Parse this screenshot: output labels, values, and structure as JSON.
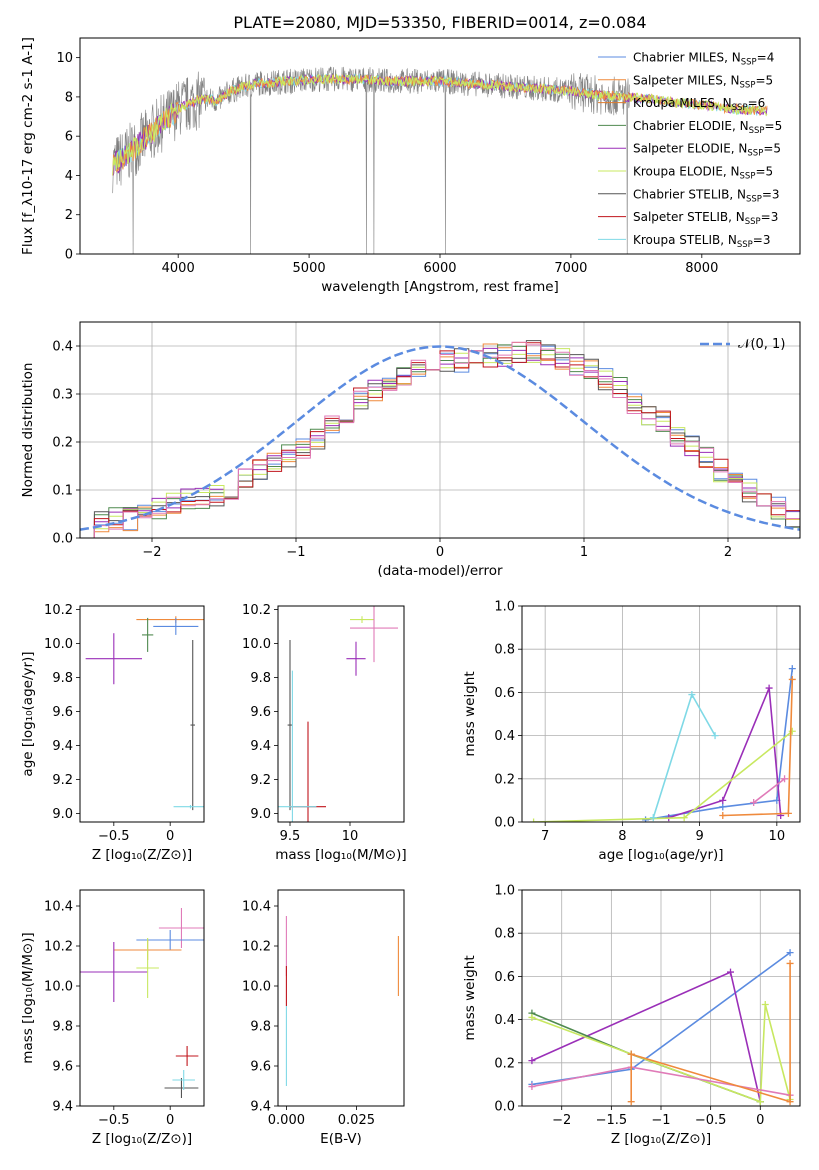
{
  "colors": {
    "chabrier_miles": "#5b8be0",
    "salpeter_miles": "#ef8a3c",
    "kroupa_miles": "#e07b2c",
    "chabrier_elodie": "#4f8a4f",
    "salpeter_elodie": "#9a2fb8",
    "kroupa_elodie": "#c8e860",
    "chabrier_stelib": "#555555",
    "salpeter_stelib": "#c0151c",
    "kroupa_stelib": "#7fd9e6",
    "gaussian": "#5b8be0",
    "pink": "#e07bb8",
    "spectrum": "#808080"
  },
  "chart_data": [
    {
      "id": "spectrum",
      "type": "line",
      "title": "PLATE=2080, MJD=53350, FIBERID=0014, z=0.084",
      "xlabel": "wavelength [Angstrom, rest frame]",
      "ylabel": "Flux [f_λ10^{-17} erg cm^{-2} s^{-1} A^{-1}]",
      "xlim": [
        3250,
        8750
      ],
      "ylim": [
        0,
        11
      ],
      "xticks": [
        4000,
        5000,
        6000,
        7000,
        8000
      ],
      "yticks": [
        0,
        2,
        4,
        6,
        8,
        10
      ],
      "grid": false,
      "legend_position": "right",
      "legend": [
        {
          "label": "Chabrier MILES, N",
          "sub": "SSP",
          "suffix": "=4",
          "color_key": "chabrier_miles"
        },
        {
          "label": "Salpeter MILES, N",
          "sub": "SSP",
          "suffix": "=5",
          "color_key": "salpeter_miles"
        },
        {
          "label": "Kroupa MILES, N",
          "sub": "SSP",
          "suffix": "=6",
          "color_key": "kroupa_miles"
        },
        {
          "label": "Chabrier ELODIE, N",
          "sub": "SSP",
          "suffix": "=5",
          "color_key": "chabrier_elodie"
        },
        {
          "label": "Salpeter ELODIE, N",
          "sub": "SSP",
          "suffix": "=5",
          "color_key": "salpeter_elodie"
        },
        {
          "label": "Kroupa ELODIE, N",
          "sub": "SSP",
          "suffix": "=5",
          "color_key": "kroupa_elodie"
        },
        {
          "label": "Chabrier STELIB, N",
          "sub": "SSP",
          "suffix": "=3",
          "color_key": "chabrier_stelib"
        },
        {
          "label": "Salpeter STELIB, N",
          "sub": "SSP",
          "suffix": "=3",
          "color_key": "salpeter_stelib"
        },
        {
          "label": "Kroupa STELIB, N",
          "sub": "SSP",
          "suffix": "=3",
          "color_key": "kroupa_stelib"
        }
      ],
      "data_x": [
        3520,
        3600,
        3700,
        3800,
        3900,
        4000,
        4100,
        4200,
        4300,
        4400,
        4500,
        4600,
        4700,
        4800,
        4900,
        5000,
        5200,
        5400,
        5600,
        5800,
        6000,
        6200,
        6400,
        6600,
        6800,
        7000,
        7200,
        7400,
        7600,
        7800,
        8000,
        8200,
        8400
      ],
      "data_y": [
        4.6,
        5.0,
        5.6,
        6.2,
        6.8,
        7.4,
        7.7,
        7.9,
        7.8,
        8.3,
        8.5,
        8.7,
        8.7,
        8.8,
        8.8,
        8.9,
        8.9,
        8.9,
        8.8,
        8.8,
        8.8,
        8.7,
        8.6,
        8.5,
        8.4,
        8.3,
        8.1,
        8.0,
        7.9,
        7.7,
        7.6,
        7.4,
        7.3
      ]
    },
    {
      "id": "residuals",
      "type": "bar",
      "xlabel": "(data-model)/error",
      "ylabel": "Normed distribution",
      "xlim": [
        -2.5,
        2.5
      ],
      "ylim": [
        0,
        0.45
      ],
      "xticks": [
        -2,
        -1,
        0,
        1,
        2
      ],
      "yticks": [
        0.0,
        0.1,
        0.2,
        0.3,
        0.4
      ],
      "grid": true,
      "legend_position": "top-right",
      "legend": [
        {
          "label": "𝒩(0, 1)",
          "color_key": "gaussian"
        }
      ],
      "bin_edges_start": -2.5,
      "bin_width": 0.1,
      "histogram": [
        0.02,
        0.03,
        0.04,
        0.04,
        0.05,
        0.06,
        0.07,
        0.08,
        0.08,
        0.09,
        0.1,
        0.12,
        0.14,
        0.16,
        0.17,
        0.19,
        0.21,
        0.24,
        0.26,
        0.29,
        0.31,
        0.33,
        0.34,
        0.35,
        0.36,
        0.37,
        0.37,
        0.38,
        0.38,
        0.38,
        0.39,
        0.39,
        0.38,
        0.37,
        0.36,
        0.35,
        0.33,
        0.31,
        0.28,
        0.26,
        0.24,
        0.21,
        0.19,
        0.17,
        0.14,
        0.12,
        0.1,
        0.08,
        0.06,
        0.04
      ]
    },
    {
      "id": "age-vs-z",
      "type": "scatter",
      "xlabel": "Z [log₁₀(Z/Z⊙)]",
      "ylabel": "age  [log₁₀(age/yr)]",
      "xlim": [
        -0.8,
        0.3
      ],
      "ylim": [
        8.95,
        10.22
      ],
      "xticks": [
        -0.5,
        0.0
      ],
      "yticks": [
        9.0,
        9.2,
        9.4,
        9.6,
        9.8,
        10.0,
        10.2
      ],
      "points": [
        {
          "x": 0.05,
          "y": 10.14,
          "xerr": 0.35,
          "yerr": 0.02,
          "color_key": "salpeter_miles"
        },
        {
          "x": 0.05,
          "y": 10.1,
          "xerr": 0.2,
          "yerr": 0.05,
          "color_key": "chabrier_miles"
        },
        {
          "x": -0.5,
          "y": 9.91,
          "xerr": 0.25,
          "yerr": 0.15,
          "color_key": "salpeter_elodie"
        },
        {
          "x": -0.2,
          "y": 10.05,
          "xerr": 0.05,
          "yerr": 0.1,
          "color_key": "chabrier_elodie"
        },
        {
          "x": 0.2,
          "y": 9.52,
          "xerr": 0.02,
          "yerr": 0.5,
          "color_key": "chabrier_stelib"
        },
        {
          "x": 0.18,
          "y": 9.04,
          "xerr": 0.15,
          "yerr": 0.01,
          "color_key": "kroupa_stelib"
        }
      ]
    },
    {
      "id": "age-vs-mass",
      "type": "scatter",
      "xlabel": "mass [log₁₀(M/M⊙)]",
      "ylabel": "",
      "xlim": [
        9.4,
        10.45
      ],
      "ylim": [
        8.95,
        10.22
      ],
      "xticks": [
        9.5,
        10.0
      ],
      "yticks": [
        9.0,
        9.2,
        9.4,
        9.6,
        9.8,
        10.0,
        10.2
      ],
      "points": [
        {
          "x": 10.1,
          "y": 10.14,
          "xerr": 0.1,
          "yerr": 0.02,
          "color_key": "kroupa_elodie"
        },
        {
          "x": 10.2,
          "y": 10.09,
          "xerr": 0.2,
          "yerr": 0.2,
          "color_key": "pink"
        },
        {
          "x": 10.05,
          "y": 9.91,
          "xerr": 0.08,
          "yerr": 0.1,
          "color_key": "salpeter_elodie"
        },
        {
          "x": 9.5,
          "y": 9.52,
          "xerr": 0.02,
          "yerr": 0.5,
          "color_key": "chabrier_stelib"
        },
        {
          "x": 9.65,
          "y": 9.04,
          "xerr": 0.15,
          "yerr": 0.5,
          "color_key": "salpeter_stelib"
        },
        {
          "x": 9.52,
          "y": 9.04,
          "xerr": 0.2,
          "yerr": 0.8,
          "color_key": "kroupa_stelib"
        }
      ]
    },
    {
      "id": "massweight-vs-age",
      "type": "line",
      "xlabel": "age  [log₁₀(age/yr)]",
      "ylabel": "mass weight",
      "xlim": [
        6.7,
        10.3
      ],
      "ylim": [
        0.0,
        1.0
      ],
      "xticks": [
        7,
        8,
        9,
        10
      ],
      "yticks": [
        0.0,
        0.2,
        0.4,
        0.6,
        0.8,
        1.0
      ],
      "grid": true,
      "series": [
        {
          "color_key": "chabrier_miles",
          "x": [
            8.3,
            9.3,
            10.0,
            10.2
          ],
          "y": [
            0.01,
            0.07,
            0.1,
            0.71
          ]
        },
        {
          "color_key": "salpeter_elodie",
          "x": [
            8.6,
            9.3,
            9.9,
            10.05
          ],
          "y": [
            0.02,
            0.1,
            0.62,
            0.03
          ]
        },
        {
          "color_key": "kroupa_elodie",
          "x": [
            6.85,
            8.8,
            10.2
          ],
          "y": [
            0.0,
            0.02,
            0.42
          ]
        },
        {
          "color_key": "kroupa_stelib",
          "x": [
            8.4,
            8.9,
            9.2
          ],
          "y": [
            0.02,
            0.59,
            0.4
          ]
        },
        {
          "color_key": "salpeter_miles",
          "x": [
            9.3,
            10.15,
            10.2
          ],
          "y": [
            0.03,
            0.04,
            0.66
          ]
        },
        {
          "color_key": "pink",
          "x": [
            9.7,
            10.1
          ],
          "y": [
            0.09,
            0.2
          ]
        }
      ]
    },
    {
      "id": "mass-vs-z",
      "type": "scatter",
      "xlabel": "Z [log₁₀(Z/Z⊙)]",
      "ylabel": "mass [log₁₀(M/M⊙)]",
      "xlim": [
        -0.8,
        0.3
      ],
      "ylim": [
        9.4,
        10.48
      ],
      "xticks": [
        -0.5,
        0.0
      ],
      "yticks": [
        9.4,
        9.6,
        9.8,
        10.0,
        10.2,
        10.4
      ],
      "points": [
        {
          "x": 0.1,
          "y": 10.29,
          "xerr": 0.2,
          "yerr": 0.1,
          "color_key": "pink"
        },
        {
          "x": 0.0,
          "y": 10.23,
          "xerr": 0.3,
          "yerr": 0.05,
          "color_key": "chabrier_miles"
        },
        {
          "x": -0.2,
          "y": 10.18,
          "xerr": 0.3,
          "yerr": 0.05,
          "color_key": "salpeter_miles"
        },
        {
          "x": -0.5,
          "y": 10.07,
          "xerr": 0.3,
          "yerr": 0.15,
          "color_key": "salpeter_elodie"
        },
        {
          "x": -0.2,
          "y": 10.09,
          "xerr": 0.1,
          "yerr": 0.15,
          "color_key": "kroupa_elodie"
        },
        {
          "x": 0.15,
          "y": 9.65,
          "xerr": 0.1,
          "yerr": 0.05,
          "color_key": "salpeter_stelib"
        },
        {
          "x": 0.1,
          "y": 9.49,
          "xerr": 0.15,
          "yerr": 0.05,
          "color_key": "chabrier_stelib"
        },
        {
          "x": 0.12,
          "y": 9.53,
          "xerr": 0.1,
          "yerr": 0.05,
          "color_key": "kroupa_stelib"
        }
      ]
    },
    {
      "id": "mass-vs-ebv",
      "type": "scatter",
      "xlabel": "E(B-V)",
      "ylabel": "",
      "xlim": [
        -0.003,
        0.042
      ],
      "ylim": [
        9.4,
        10.48
      ],
      "xticks": [
        0.0,
        0.025
      ],
      "xticklabels": [
        "0.000",
        "0.025"
      ],
      "yticks": [
        9.4,
        9.6,
        9.8,
        10.0,
        10.2,
        10.4
      ],
      "points": [
        {
          "x": 0.0,
          "y": 10.2,
          "yerr": 0.15,
          "color_key": "pink"
        },
        {
          "x": 0.0,
          "y": 10.0,
          "yerr": 0.1,
          "color_key": "salpeter_stelib"
        },
        {
          "x": 0.0,
          "y": 9.7,
          "yerr": 0.2,
          "color_key": "kroupa_stelib"
        },
        {
          "x": 0.04,
          "y": 10.1,
          "yerr": 0.15,
          "color_key": "salpeter_miles"
        }
      ]
    },
    {
      "id": "massweight-vs-z",
      "type": "line",
      "xlabel": "Z [log₁₀(Z/Z⊙)]",
      "ylabel": "mass weight",
      "xlim": [
        -2.4,
        0.4
      ],
      "ylim": [
        0.0,
        1.0
      ],
      "xticks": [
        -2.0,
        -1.5,
        -1.0,
        -0.5,
        0.0
      ],
      "yticks": [
        0.0,
        0.2,
        0.4,
        0.6,
        0.8,
        1.0
      ],
      "grid": true,
      "series": [
        {
          "color_key": "chabrier_miles",
          "x": [
            -2.3,
            -1.3,
            0.3
          ],
          "y": [
            0.1,
            0.17,
            0.71
          ]
        },
        {
          "color_key": "salpeter_elodie",
          "x": [
            -2.3,
            -0.3,
            0.0
          ],
          "y": [
            0.21,
            0.62,
            0.02
          ]
        },
        {
          "color_key": "chabrier_elodie",
          "x": [
            -2.3,
            -1.3,
            0.0
          ],
          "y": [
            0.43,
            0.24,
            0.02
          ]
        },
        {
          "color_key": "kroupa_elodie",
          "x": [
            -2.3,
            0.0,
            0.05,
            0.3
          ],
          "y": [
            0.41,
            0.02,
            0.47,
            0.03
          ]
        },
        {
          "color_key": "pink",
          "x": [
            -2.3,
            -1.3,
            0.3
          ],
          "y": [
            0.09,
            0.18,
            0.05
          ]
        },
        {
          "color_key": "salpeter_miles",
          "x": [
            -1.3,
            -1.3,
            0.3,
            0.3
          ],
          "y": [
            0.02,
            0.24,
            0.02,
            0.66
          ]
        }
      ]
    }
  ]
}
